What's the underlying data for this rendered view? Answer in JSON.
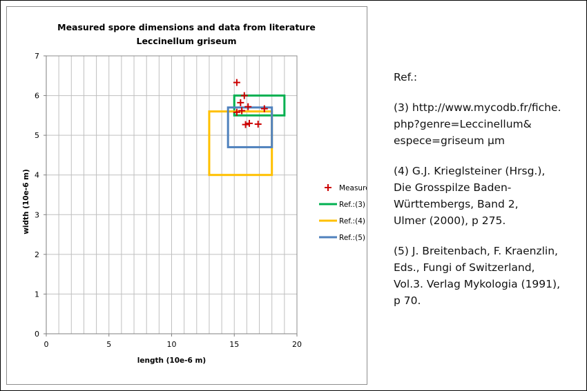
{
  "chart_data": {
    "type": "scatter",
    "title": "Measured spore dimensions and data from literature",
    "subtitle": "Leccinellum griseum",
    "xlabel": "length (10e-6 m)",
    "ylabel": "width (10e-6 m)",
    "xlim": [
      0,
      20
    ],
    "ylim": [
      0,
      7
    ],
    "x_ticks": [
      0,
      5,
      10,
      15,
      20
    ],
    "y_ticks": [
      0,
      1,
      2,
      3,
      4,
      5,
      6,
      7
    ],
    "x_minor_step": 1,
    "grid": true,
    "legend_position": "right",
    "series": [
      {
        "name": "Measured",
        "marker": "plus",
        "color": "#cc0000",
        "points": [
          [
            15.2,
            6.33
          ],
          [
            15.8,
            6.0
          ],
          [
            15.5,
            5.82
          ],
          [
            16.1,
            5.72
          ],
          [
            15.6,
            5.62
          ],
          [
            15.2,
            5.58
          ],
          [
            17.4,
            5.67
          ],
          [
            15.9,
            5.27
          ],
          [
            16.2,
            5.3
          ],
          [
            16.9,
            5.28
          ]
        ]
      },
      {
        "name": "Ref.:(3)",
        "color": "#00b050",
        "rect": {
          "x": [
            15,
            19
          ],
          "y": [
            5.5,
            6.0
          ]
        }
      },
      {
        "name": "Ref.:(4)",
        "color": "#ffc000",
        "rect": {
          "x": [
            13,
            18
          ],
          "y": [
            4.0,
            5.6
          ]
        }
      },
      {
        "name": "Ref.:(5)",
        "color": "#4f81bd",
        "rect": {
          "x": [
            14.5,
            18
          ],
          "y": [
            4.7,
            5.7
          ]
        }
      }
    ]
  },
  "references": [
    "Ref.:",
    "(3) http://www.mycodb.fr/fiche.",
    "php?genre=Leccinellum&",
    "espece=griseum µm",
    "(4) G.J. Krieglsteiner (Hrsg.),",
    "Die Grosspilze Baden-",
    "Württembergs, Band 2,",
    "Ulmer (2000), p 275.",
    "(5) J. Breitenbach, F. Kraenzlin,",
    "Eds., Fungi of Switzerland,",
    "Vol.3. Verlag Mykologia (1991),",
    "p 70."
  ]
}
